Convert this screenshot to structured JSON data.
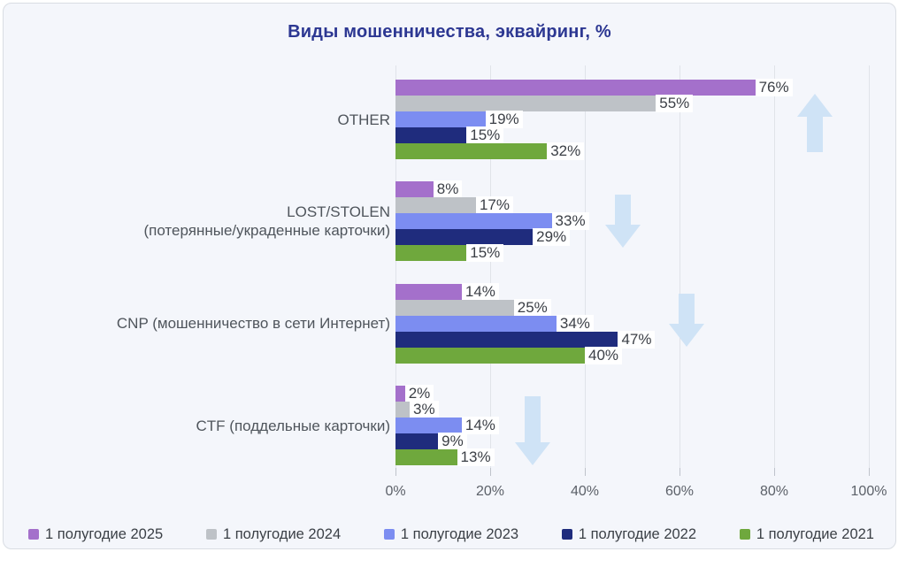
{
  "chart_data": {
    "type": "bar",
    "orientation": "horizontal",
    "title": "Виды мошенничества, эквайринг, %",
    "categories": [
      {
        "lines": [
          "OTHER"
        ]
      },
      {
        "lines": [
          "LOST/STOLEN",
          "(потерянные/украденные карточки)"
        ]
      },
      {
        "lines": [
          "CNP (мошенничество в сети Интернет)"
        ]
      },
      {
        "lines": [
          "CTF (поддельные карточки)"
        ]
      }
    ],
    "series": [
      {
        "name": "1 полугодие 2025",
        "color": "#a470cb",
        "values": [
          76,
          8,
          14,
          2
        ]
      },
      {
        "name": "1 полугодие 2024",
        "color": "#bec2c7",
        "values": [
          55,
          17,
          25,
          3
        ]
      },
      {
        "name": "1 полугодие 2023",
        "color": "#7c8df1",
        "values": [
          19,
          33,
          34,
          14
        ]
      },
      {
        "name": "1 полугодие 2022",
        "color": "#1f2c7d",
        "values": [
          15,
          29,
          47,
          9
        ]
      },
      {
        "name": "1 полугодие 2021",
        "color": "#6fa83d",
        "values": [
          32,
          15,
          40,
          13
        ]
      }
    ],
    "value_suffix": "%",
    "xlim": [
      0,
      100
    ],
    "xticks": [
      0,
      20,
      40,
      60,
      80,
      100
    ],
    "xtick_labels": [
      "0%",
      "20%",
      "40%",
      "60%",
      "80%",
      "100%"
    ],
    "grid": true,
    "legend_position": "bottom",
    "trend_arrows": [
      {
        "category": "OTHER",
        "direction": "up"
      },
      {
        "category": "LOST/STOLEN",
        "direction": "down"
      },
      {
        "category": "CNP",
        "direction": "down"
      },
      {
        "category": "CTF",
        "direction": "down"
      }
    ],
    "arrow_color": "#cfe3f6"
  }
}
